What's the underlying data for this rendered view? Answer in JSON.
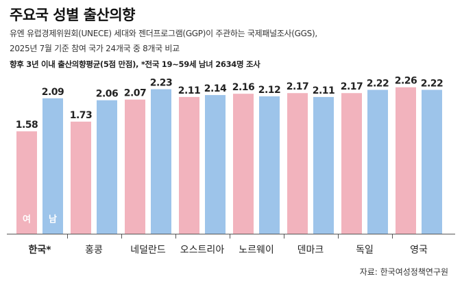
{
  "header": {
    "title": "주요국 성별 출산의향",
    "subtitle_line1": "유엔 유럽경제위원회(UNECE) 세대와 젠더프로그램(GGP)이 주관하는 국제패널조사(GGS),",
    "subtitle_line2": "2025년 7월 기준 참여 국가 24개국 중 8개국 비교",
    "note": "향후 3년 이내 출산의향평균(5점 만점), *전국 19~59세 남녀 2634명 조사"
  },
  "source": "자료: 한국여성정책연구원",
  "colors": {
    "female": "#f2b3bd",
    "male": "#9dc4ea"
  },
  "chart_data": {
    "type": "bar",
    "categories": [
      "한국*",
      "홍콩",
      "네덜란드",
      "오스트리아",
      "노르웨이",
      "덴마크",
      "독일",
      "영국"
    ],
    "series": [
      {
        "name": "여",
        "values": [
          1.58,
          1.73,
          2.07,
          2.11,
          2.16,
          2.17,
          2.17,
          2.26
        ]
      },
      {
        "name": "남",
        "values": [
          2.09,
          2.06,
          2.23,
          2.14,
          2.12,
          2.11,
          2.22,
          2.22
        ]
      }
    ],
    "ylim": [
      0,
      2.32
    ],
    "grid": false
  }
}
